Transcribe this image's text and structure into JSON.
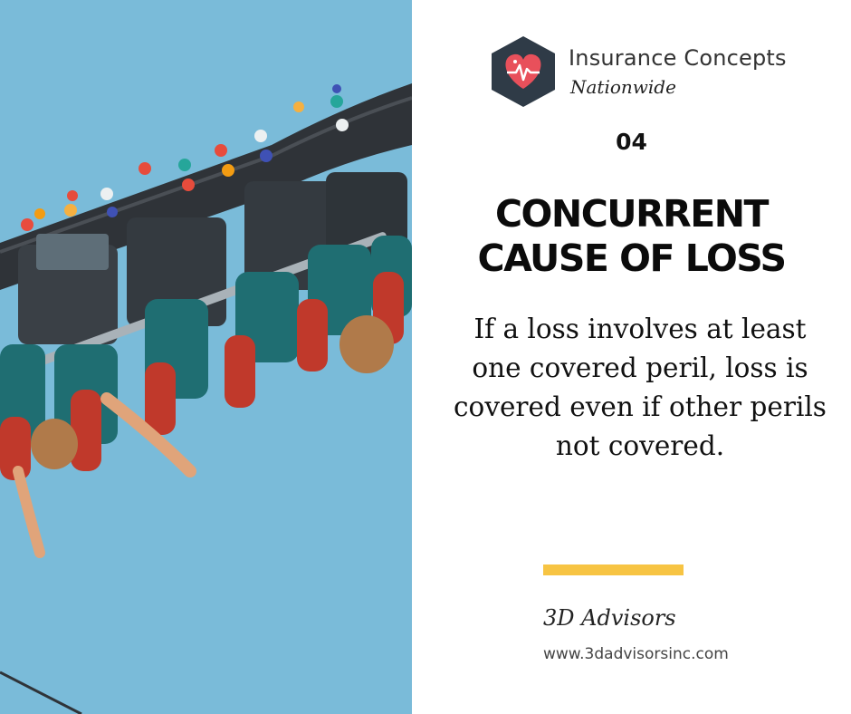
{
  "brand": {
    "line1": "Insurance Concepts",
    "line2": "Nationwide",
    "mark_color": "#2f3b47",
    "heart_color": "#e8505b"
  },
  "slide": {
    "number": "04",
    "headline_line1": "CONCURRENT",
    "headline_line2": "CAUSE OF LOSS",
    "body_lines": [
      "If a loss involves at least",
      "one covered peril, loss is",
      "covered even if other perils",
      "not covered."
    ]
  },
  "footer": {
    "name": "3D Advisors",
    "url": "www.3dadvisorsinc.com",
    "accent_color": "#f7c443"
  },
  "photo": {
    "icon": "roller-coaster-photo",
    "sky_color": "#6fb6d6"
  }
}
